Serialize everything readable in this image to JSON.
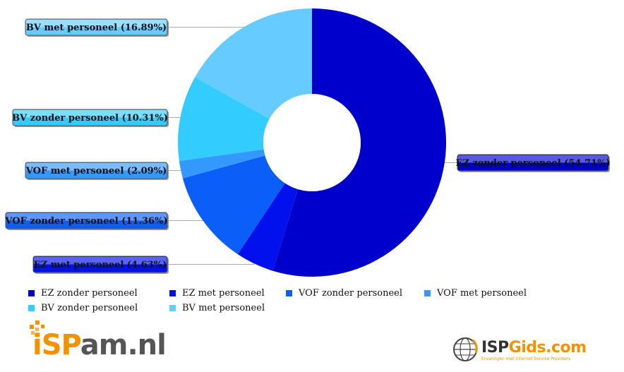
{
  "chart_data": {
    "type": "pie",
    "donut": true,
    "title": "",
    "slices": [
      {
        "label": "EZ zonder personeel",
        "value": 54.71,
        "display": "EZ zonder personeel (54.71%)",
        "color": "#0000cc"
      },
      {
        "label": "EZ met personeel",
        "value": 4.63,
        "display": "EZ met personeel (4.63%)",
        "color": "#0011ee"
      },
      {
        "label": "VOF zonder personeel",
        "value": 11.36,
        "display": "VOF zonder personeel (11.36%)",
        "color": "#0b5ef7"
      },
      {
        "label": "VOF met personeel",
        "value": 2.09,
        "display": "VOF met personeel (2.09%)",
        "color": "#3399ff"
      },
      {
        "label": "BV zonder personeel",
        "value": 10.31,
        "display": "BV zonder personeel (10.31%)",
        "color": "#33ccff"
      },
      {
        "label": "BV met personeel",
        "value": 16.89,
        "display": "BV met personeel (16.89%)",
        "color": "#66ccff"
      }
    ],
    "legend_placement": "bottom"
  },
  "logos": {
    "left": {
      "part1": "iSP",
      "part2": "am.nl"
    },
    "right": {
      "part1": "ISP",
      "part2": "Gids.com",
      "tagline": "Ervaringen met Internet Service Providers"
    }
  }
}
